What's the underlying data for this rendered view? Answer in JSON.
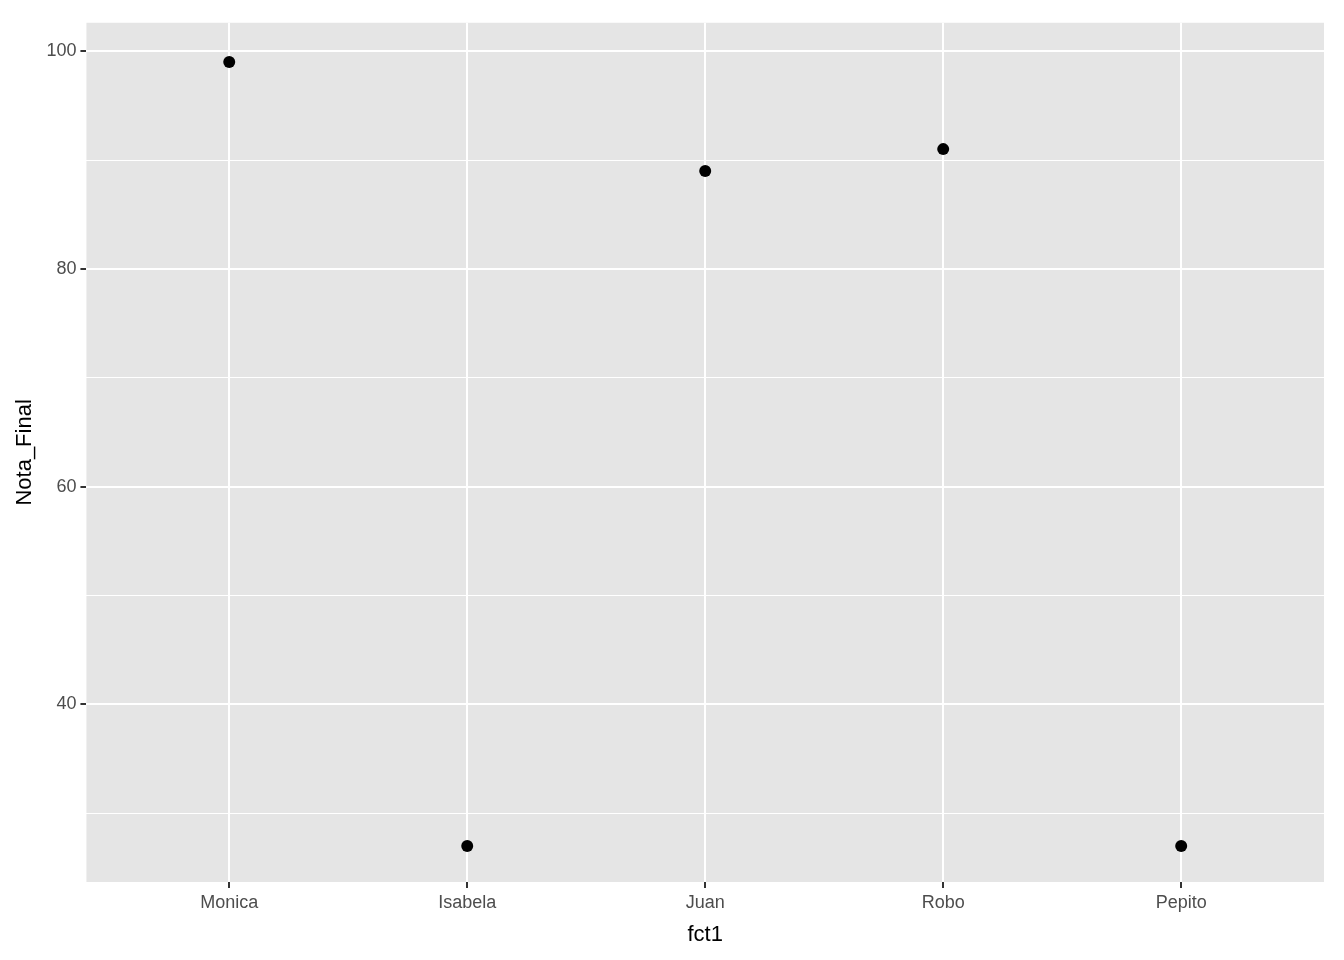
{
  "chart_data": {
    "type": "scatter",
    "xlabel": "fct1",
    "ylabel": "Nota_Final",
    "categories": [
      "Monica",
      "Isabela",
      "Juan",
      "Robo",
      "Pepito"
    ],
    "series": [
      {
        "color": "#000000",
        "values": [
          99,
          27,
          89,
          91,
          27
        ]
      }
    ],
    "ylim": [
      23.7,
      102.6
    ],
    "yticks": [
      {
        "value": 30,
        "label": null
      },
      40,
      {
        "value": 50,
        "label": null
      },
      60,
      {
        "value": 70,
        "label": null
      },
      80,
      {
        "value": 90,
        "label": null
      },
      100
    ],
    "grid": true,
    "legend": false,
    "marker": "circle"
  }
}
